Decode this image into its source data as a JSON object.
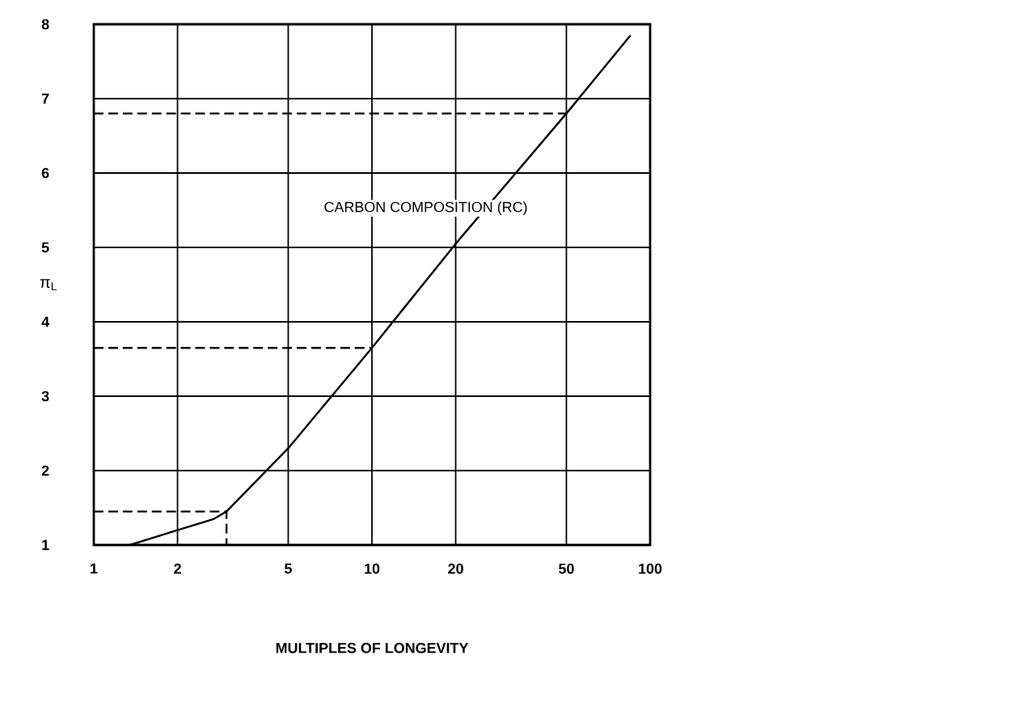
{
  "chart_data": {
    "type": "line",
    "xlabel": "MULTIPLES OF LONGEVITY",
    "ylabel": "π$_{L}$",
    "log": "x",
    "grid": true,
    "marker": "none",
    "xlim": [
      1,
      100
    ],
    "xticks": [
      1,
      2,
      5,
      10,
      20,
      50,
      100
    ],
    "ylim": [
      1,
      8
    ],
    "yticks": [
      1,
      2,
      3,
      4,
      5,
      6,
      7,
      8
    ],
    "series": [
      {
        "name": "CARBON COMPOSITION (RC)",
        "color": "#000000",
        "line_style": "solid",
        "x": [
          1.35,
          2,
          2.7,
          3,
          5,
          10,
          20,
          50,
          85
        ],
        "values": [
          1,
          1.2,
          1.35,
          1.45,
          2.3,
          3.65,
          5.05,
          6.8,
          7.85
        ]
      },
      {
        "color": "#000000",
        "line_style": "dashed",
        "x": [
          1,
          50
        ],
        "values": [
          6.8,
          6.8
        ]
      },
      {
        "color": "#000000",
        "line_style": "dashed",
        "x": [
          1,
          10
        ],
        "values": [
          3.65,
          3.65
        ]
      },
      {
        "color": "#000000",
        "line_style": "dashed",
        "x": [
          1,
          3,
          3
        ],
        "values": [
          1.45,
          1.45,
          1
        ]
      }
    ]
  }
}
